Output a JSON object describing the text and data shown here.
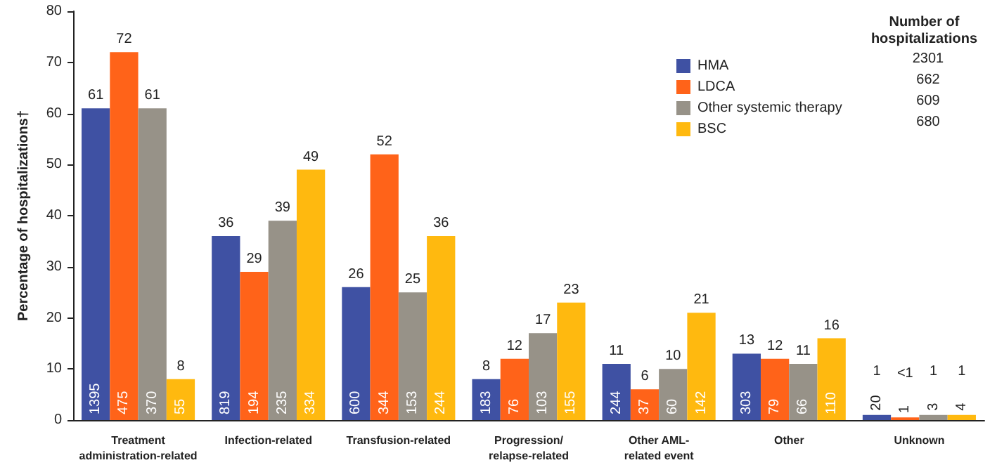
{
  "chart_data": {
    "type": "bar",
    "categories": [
      "Treatment\nadministration-related",
      "Infection-related",
      "Transfusion-related",
      "Progression/\nrelapse-related",
      "Other AML-\nrelated event",
      "Other",
      "Unknown"
    ],
    "ylabel": "Percentage of hospitalizations†",
    "legend_title": "Number of\nhospitalizations",
    "legend": "top right",
    "series": [
      {
        "name": "HMA",
        "color": "#3f51a3",
        "values": [
          61,
          36,
          26,
          8,
          11,
          13,
          1
        ],
        "value_labels": [
          "61",
          "36",
          "26",
          "8",
          "11",
          "13",
          "1"
        ]
      },
      {
        "name": "LDCA",
        "color": "#ff6319",
        "values": [
          72,
          29,
          52,
          12,
          6,
          12,
          0.5
        ],
        "value_labels": [
          "72",
          "29",
          "52",
          "12",
          "6",
          "12",
          "<1"
        ]
      },
      {
        "name": "Other systemic therapy",
        "color": "#979288",
        "values": [
          61,
          39,
          25,
          17,
          10,
          11,
          1
        ],
        "value_labels": [
          "61",
          "39",
          "25",
          "17",
          "10",
          "11",
          "1"
        ]
      },
      {
        "name": "BSC",
        "color": "#ffb90f",
        "values": [
          8,
          49,
          36,
          23,
          21,
          16,
          1
        ],
        "value_labels": [
          "8",
          "49",
          "36",
          "23",
          "21",
          "16",
          "1"
        ]
      }
    ],
    "annotations": [
      "2301",
      "662",
      "609",
      "680",
      "1395",
      "819",
      "600",
      "183",
      "244",
      "303",
      "20",
      "475",
      "194",
      "344",
      "76",
      "37",
      "79",
      "1",
      "370",
      "235",
      "153",
      "103",
      "60",
      "66",
      "3",
      "55",
      "334",
      "244",
      "155",
      "142",
      "110",
      "4"
    ],
    "ylim": [
      0,
      80
    ],
    "yticks": [
      0,
      10,
      20,
      30,
      40,
      50,
      60,
      70,
      80
    ],
    "grid": false
  }
}
